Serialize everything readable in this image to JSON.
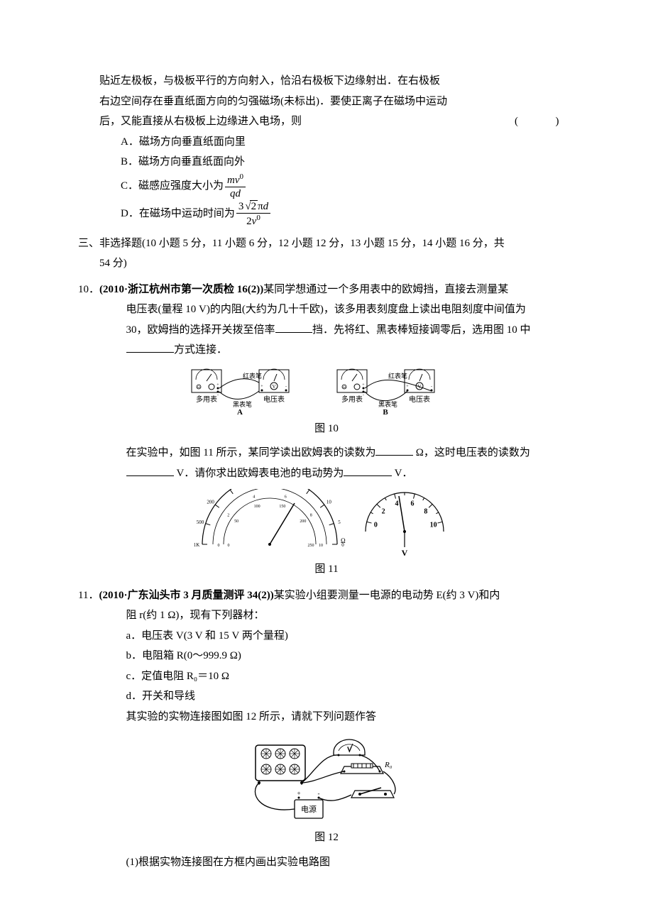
{
  "q9_continued": {
    "line1": "贴近左极板，与极板平行的方向射入，恰沿右极板下边缘射出．在右极板",
    "line2": "右边空间存在垂直纸面方向的匀强磁场(未标出)．要使正离子在磁场中运动",
    "line3": "后，又能直接从右极板上边缘进入电场，则",
    "paren": "(　　)",
    "options": {
      "A": "A．磁场方向垂直纸面向里",
      "B": "B．磁场方向垂直纸面向外",
      "C_pre": "C．磁感应强度大小为",
      "C_num_html": "<i>mv</i><span class='sup'>0</span>",
      "C_den_html": "<i>qd</i>",
      "D_pre": "D．在磁场中运动时间为",
      "D_num_parts": {
        "coef": "3",
        "under_root": "2",
        "after": "π<i>d</i>"
      },
      "D_den_html": "2<i>v</i><span class='sup'>0</span>"
    }
  },
  "section3": {
    "title": "三、非选择题(10 小题 5 分，11 小题 6 分，12 小题 12 分，13 小题 15 分，14 小题 16 分，共",
    "title_cont": "54 分)"
  },
  "q10": {
    "prefix": "10．",
    "source": "(2010·浙江杭州市第一次质检 16(2))",
    "text1": "某同学想通过一个多用表中的欧姆挡，直接去测量某",
    "text2_a": "电压表(量程 10 V)的内阻(大约为几十千欧)，该多用表刻度盘上读出电阻刻度中间值为",
    "text2_b": "30，欧姆挡的选择开关拨至倍率",
    "text2_c": "挡．先将红、黑表棒短接调零后，选用图 10 中",
    "text2_d": "方式连接．",
    "text3_a": "在实验中，如图 11 所示，某同学读出欧姆表的读数为",
    "text3_b": " Ω，这时电压表的读数为",
    "text3_c": " V．请你求出欧姆表电池的电动势为",
    "text3_d": " V．",
    "fig10": {
      "label": "图 10",
      "labels": {
        "multimeter": "多用表",
        "voltmeter": "电压表",
        "red_pen": "红表笔",
        "black_pen": "黑表笔",
        "A": "A",
        "B": "B"
      }
    },
    "fig11": {
      "label": "图 11",
      "ohm_ticks": [
        "1K",
        "500",
        "200",
        "100",
        "50",
        "40",
        "30",
        "20",
        "10",
        "5",
        "0"
      ],
      "ohm_inner": [
        "0",
        "2",
        "4",
        "6",
        "8",
        "10",
        "0",
        "50",
        "100",
        "150",
        "200",
        "250"
      ],
      "ohm_unit": "Ω",
      "volt_ticks": [
        "0",
        "2",
        "4",
        "6",
        "8",
        "10"
      ],
      "volt_unit": "V"
    }
  },
  "q11": {
    "prefix": "11．",
    "source": "(2010·广东汕头市 3 月质量测评 34(2))",
    "text1": "某实验小组要测量一电源的电动势 E(约 3 V)和内",
    "text2": "阻 r(约 1 Ω)，现有下列器材：",
    "items": {
      "a": "a．电压表 V(3 V 和 15 V 两个量程)",
      "b": "b．电阻箱 R(0～999.9 Ω)",
      "c": "c．定值电阻 R₀＝10 Ω",
      "d": "d．开关和导线"
    },
    "text3": "其实验的实物连接图如图 12 所示，请就下列问题作答",
    "fig12": {
      "label": "图 12",
      "v": "V",
      "r0": "R₀",
      "battery": "电源"
    },
    "sub1": "(1)根据实物连接图在方框内画出实验电路图"
  },
  "colors": {
    "text": "#000000",
    "bg": "#ffffff",
    "line": "#000000"
  }
}
